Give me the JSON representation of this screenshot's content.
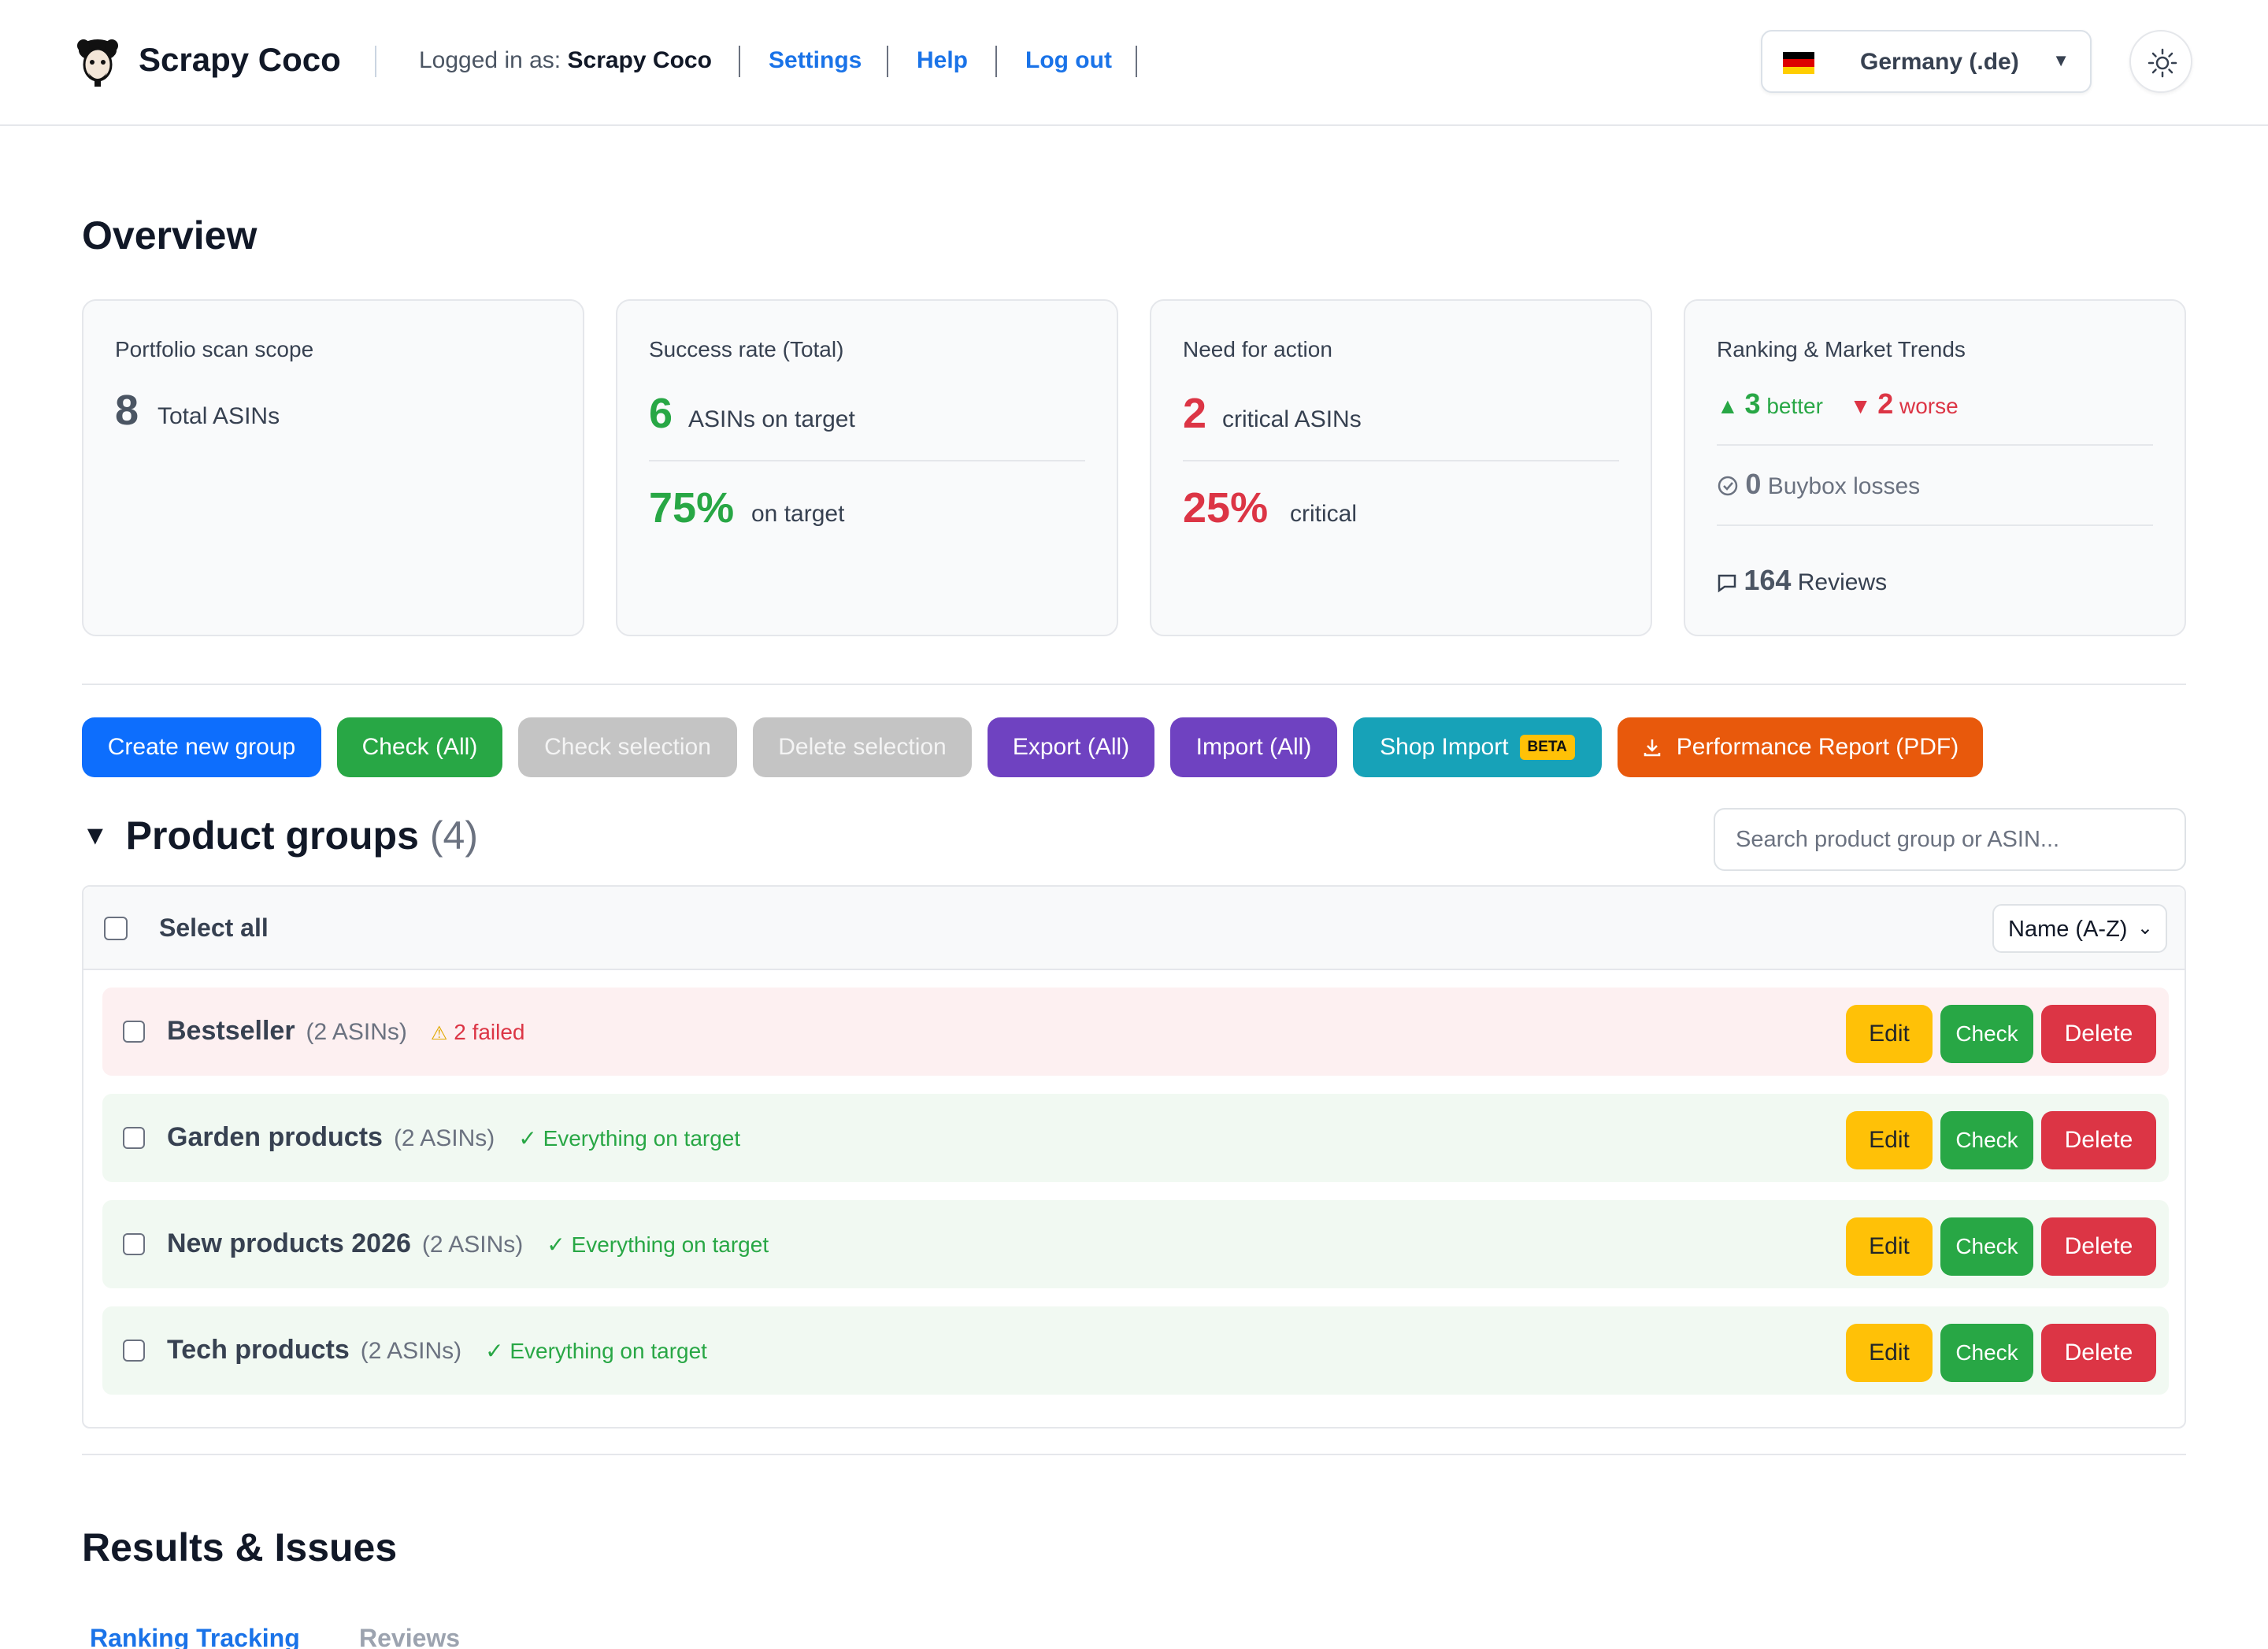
{
  "header": {
    "brand": "Scrapy Coco",
    "logged_in_prefix": "Logged in as:",
    "logged_in_user": "Scrapy Coco",
    "links": [
      "Settings",
      "Help",
      "Log out"
    ],
    "country": "Germany (.de)",
    "country_caret": "▼",
    "theme_icon": "sun-icon"
  },
  "overview": {
    "title": "Overview",
    "portfolio": {
      "title": "Portfolio scan scope",
      "value": "8",
      "unit": "Total ASINs"
    },
    "success": {
      "title": "Success rate (Total)",
      "value": "6",
      "unit": "ASINs on target",
      "percent": "75%",
      "percent_unit": "on target"
    },
    "need_action": {
      "title": "Need for action",
      "value": "2",
      "unit": "critical ASINs",
      "percent": "25%",
      "percent_unit": "critical"
    },
    "trends": {
      "title": "Ranking & Market Trends",
      "better_value": "3",
      "better_label": "better",
      "worse_value": "2",
      "worse_label": "worse",
      "buybox_value": "0",
      "buybox_label": "Buybox losses",
      "reviews_value": "164",
      "reviews_label": "Reviews"
    }
  },
  "actions": {
    "create": "Create new group",
    "check_all": "Check (All)",
    "check_selection": "Check selection",
    "delete_selection": "Delete selection",
    "export_all": "Export (All)",
    "import_all": "Import (All)",
    "shop_import": "Shop Import",
    "beta": "BETA",
    "report": "Performance Report (PDF)"
  },
  "groups": {
    "title": "Product groups",
    "count": "(4)",
    "search_placeholder": "Search product group or ASIN...",
    "select_all": "Select all",
    "sort": "Name (A-Z)",
    "rows": [
      {
        "name": "Bestseller",
        "asins": "(2 ASINs)",
        "status": "2 failed",
        "state": "bad"
      },
      {
        "name": "Garden products",
        "asins": "(2 ASINs)",
        "status": "Everything on target",
        "state": "good"
      },
      {
        "name": "New products 2026",
        "asins": "(2 ASINs)",
        "status": "Everything on target",
        "state": "good"
      },
      {
        "name": "Tech products",
        "asins": "(2 ASINs)",
        "status": "Everything on target",
        "state": "good"
      }
    ],
    "edit_label": "Edit",
    "check_label": "Check",
    "delete_label": "Delete"
  },
  "results": {
    "title": "Results & Issues",
    "tabs": [
      "Ranking Tracking",
      "Reviews"
    ]
  },
  "colors": {
    "primary": "#0d6efd",
    "success": "#28a745",
    "danger": "#dc3545",
    "warning": "#ffc107",
    "purple": "#6f42c1",
    "teal": "#17a2b8",
    "orange": "#e8590c"
  }
}
